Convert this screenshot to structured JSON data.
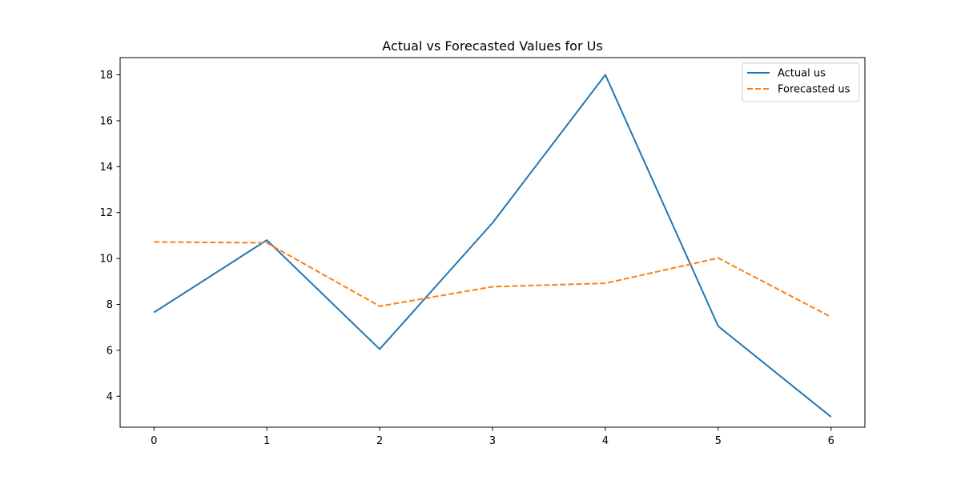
{
  "chart_data": {
    "type": "line",
    "title": "Actual vs Forecasted Values for Us",
    "xlabel": "",
    "ylabel": "",
    "x": [
      0,
      1,
      2,
      3,
      4,
      5,
      6
    ],
    "xticks": [
      "0",
      "1",
      "2",
      "3",
      "4",
      "5",
      "6"
    ],
    "yticks": [
      "4",
      "6",
      "8",
      "10",
      "12",
      "14",
      "16",
      "18"
    ],
    "xlim": [
      -0.3,
      6.3
    ],
    "ylim": [
      2.65,
      18.75
    ],
    "grid": false,
    "legend_position": "top-right",
    "series": [
      {
        "name": "Actual us",
        "values": [
          7.65,
          10.8,
          6.05,
          11.55,
          18.0,
          7.05,
          3.1
        ],
        "color": "#1f77b4",
        "style": "solid"
      },
      {
        "name": "Forecasted us",
        "values": [
          10.72,
          10.68,
          7.92,
          8.77,
          8.92,
          10.02,
          7.45
        ],
        "color": "#ff7f0e",
        "style": "dashed"
      }
    ]
  }
}
